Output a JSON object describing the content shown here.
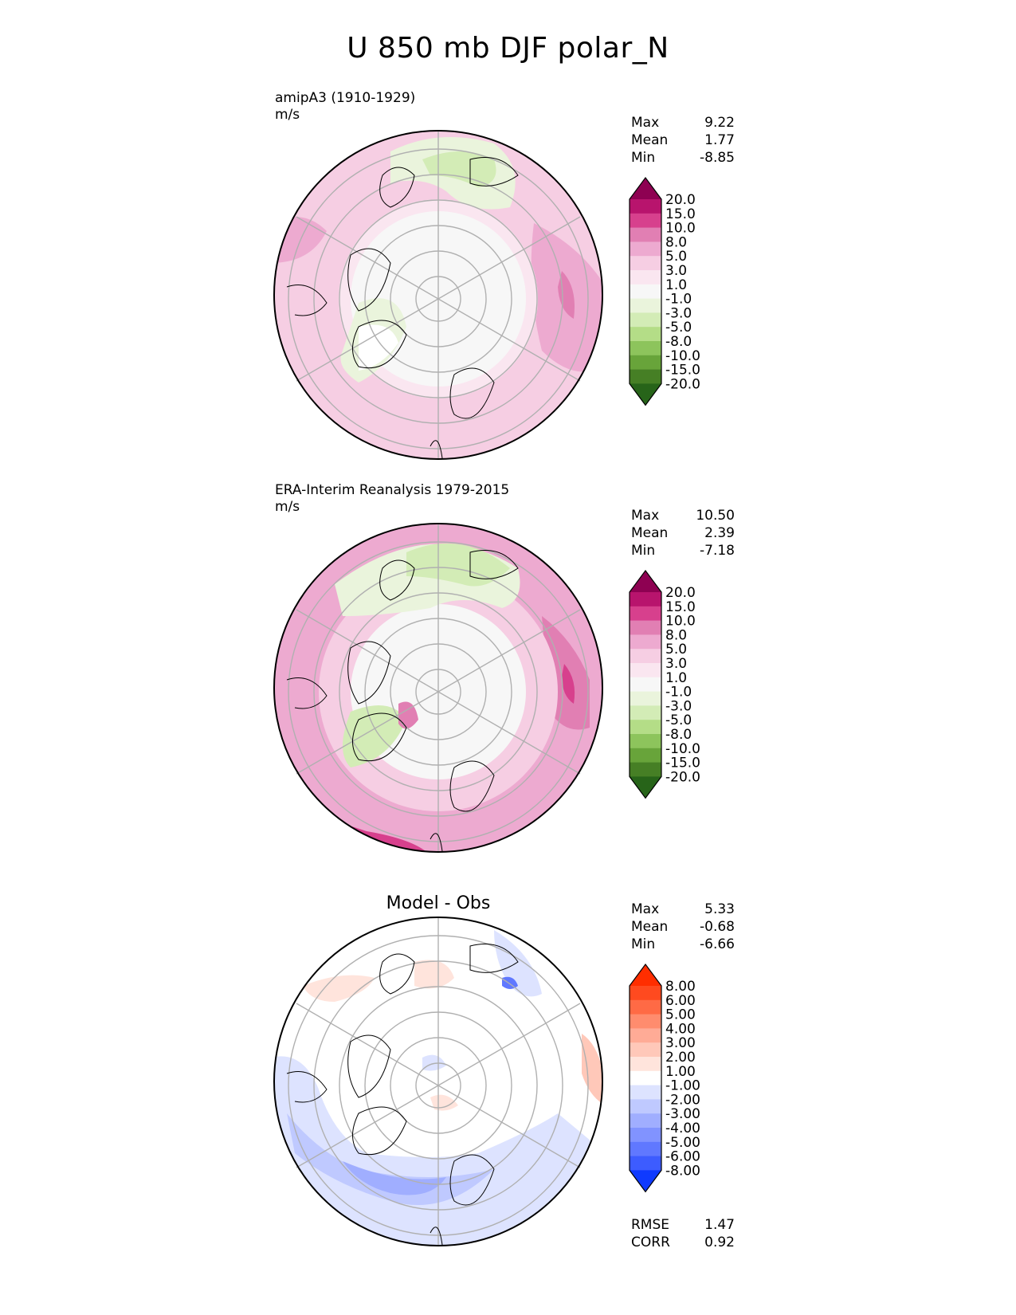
{
  "title": "U 850 mb DJF polar_N",
  "panels": [
    {
      "id": "model",
      "label_line1": "amipA3 (1910-1929)",
      "label_line2": "m/s",
      "stats": {
        "max_label": "Max",
        "max": "9.22",
        "mean_label": "Mean",
        "mean": "1.77",
        "min_label": "Min",
        "min": "-8.85"
      },
      "colorbar": {
        "labels": [
          "20.0",
          "15.0",
          "10.0",
          "8.0",
          "5.0",
          "3.0",
          "1.0",
          "-1.0",
          "-3.0",
          "-5.0",
          "-8.0",
          "-10.0",
          "-15.0",
          "-20.0"
        ],
        "colors": [
          "#8e0152",
          "#b8146d",
          "#d7408d",
          "#e17fb3",
          "#edaad0",
          "#f6cee3",
          "#fae6f0",
          "#f7f7f7",
          "#eaf4dc",
          "#d3ecb6",
          "#b4dd87",
          "#8dc45c",
          "#68a43a",
          "#467f25",
          "#276419"
        ]
      }
    },
    {
      "id": "obs",
      "label_line1": "ERA-Interim Reanalysis 1979-2015",
      "label_line2": "m/s",
      "stats": {
        "max_label": "Max",
        "max": "10.50",
        "mean_label": "Mean",
        "mean": "2.39",
        "min_label": "Min",
        "min": "-7.18"
      },
      "colorbar": {
        "labels": [
          "20.0",
          "15.0",
          "10.0",
          "8.0",
          "5.0",
          "3.0",
          "1.0",
          "-1.0",
          "-3.0",
          "-5.0",
          "-8.0",
          "-10.0",
          "-15.0",
          "-20.0"
        ],
        "colors": [
          "#8e0152",
          "#b8146d",
          "#d7408d",
          "#e17fb3",
          "#edaad0",
          "#f6cee3",
          "#fae6f0",
          "#f7f7f7",
          "#eaf4dc",
          "#d3ecb6",
          "#b4dd87",
          "#8dc45c",
          "#68a43a",
          "#467f25",
          "#276419"
        ]
      }
    },
    {
      "id": "diff",
      "title": "Model - Obs",
      "stats": {
        "max_label": "Max",
        "max": "5.33",
        "mean_label": "Mean",
        "mean": "-0.68",
        "min_label": "Min",
        "min": "-6.66"
      },
      "colorbar": {
        "labels": [
          "8.00",
          "6.00",
          "5.00",
          "4.00",
          "3.00",
          "2.00",
          "1.00",
          "-1.00",
          "-2.00",
          "-3.00",
          "-4.00",
          "-5.00",
          "-6.00",
          "-8.00"
        ],
        "colors": [
          "#ff2e00",
          "#ff4a1f",
          "#ff6a45",
          "#ff8c6e",
          "#ffab96",
          "#ffc8b9",
          "#ffe4dc",
          "#ffffff",
          "#dde3ff",
          "#bfc9ff",
          "#a0aeff",
          "#8193ff",
          "#6078ff",
          "#3d5cff",
          "#0f3aff"
        ]
      },
      "rmse_label": "RMSE",
      "rmse": "1.47",
      "corr_label": "CORR",
      "corr": "0.92"
    }
  ]
}
